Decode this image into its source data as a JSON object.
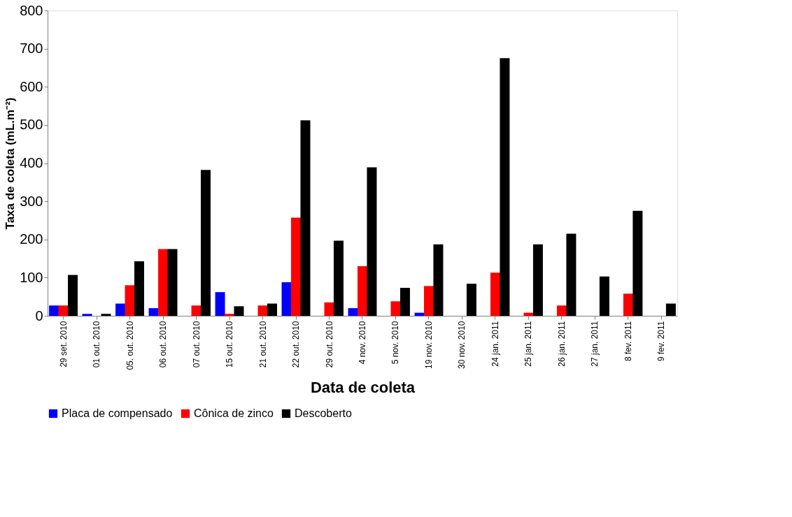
{
  "chart_data": {
    "type": "bar",
    "xlabel": "Data de coleta",
    "ylabel": "Taxa de coleta (mL.m⁻²)",
    "categories": [
      "29 set. 2010",
      "01 out. 2010",
      "05. out. 2010",
      "06 out. 2010",
      "07 out. 2010",
      "15 out. 2010",
      "21 out. 2010",
      "22 out. 2010",
      "29 out. 2010",
      "4 nov. 2010",
      "5 nov. 2010",
      "19 nov. 2010",
      "30 nov. 2010",
      "24 jan. 2011",
      "25 jan. 2011",
      "26 jan. 2011",
      "27 jan. 2011",
      "8 fev. 2011",
      "9 fev. 2011"
    ],
    "series": [
      {
        "name": "Placa de compensado",
        "color": "#0000ff",
        "values": [
          27,
          5,
          32,
          20,
          0,
          62,
          0,
          88,
          0,
          20,
          0,
          8,
          0,
          0,
          0,
          0,
          0,
          0,
          0
        ]
      },
      {
        "name": "Cônica de zinco",
        "color": "#ff0000",
        "values": [
          27,
          0,
          80,
          175,
          27,
          5,
          27,
          257,
          35,
          130,
          38,
          78,
          0,
          113,
          8,
          27,
          0,
          58,
          0
        ]
      },
      {
        "name": "Descoberto",
        "color": "#000000",
        "values": [
          107,
          5,
          143,
          175,
          382,
          25,
          32,
          512,
          197,
          389,
          73,
          187,
          84,
          675,
          187,
          215,
          103,
          275,
          32
        ]
      }
    ],
    "ylim": [
      0,
      800
    ],
    "yticks": [
      0,
      100,
      200,
      300,
      400,
      500,
      600,
      700,
      800
    ],
    "grid": false,
    "legend": "bottom"
  }
}
